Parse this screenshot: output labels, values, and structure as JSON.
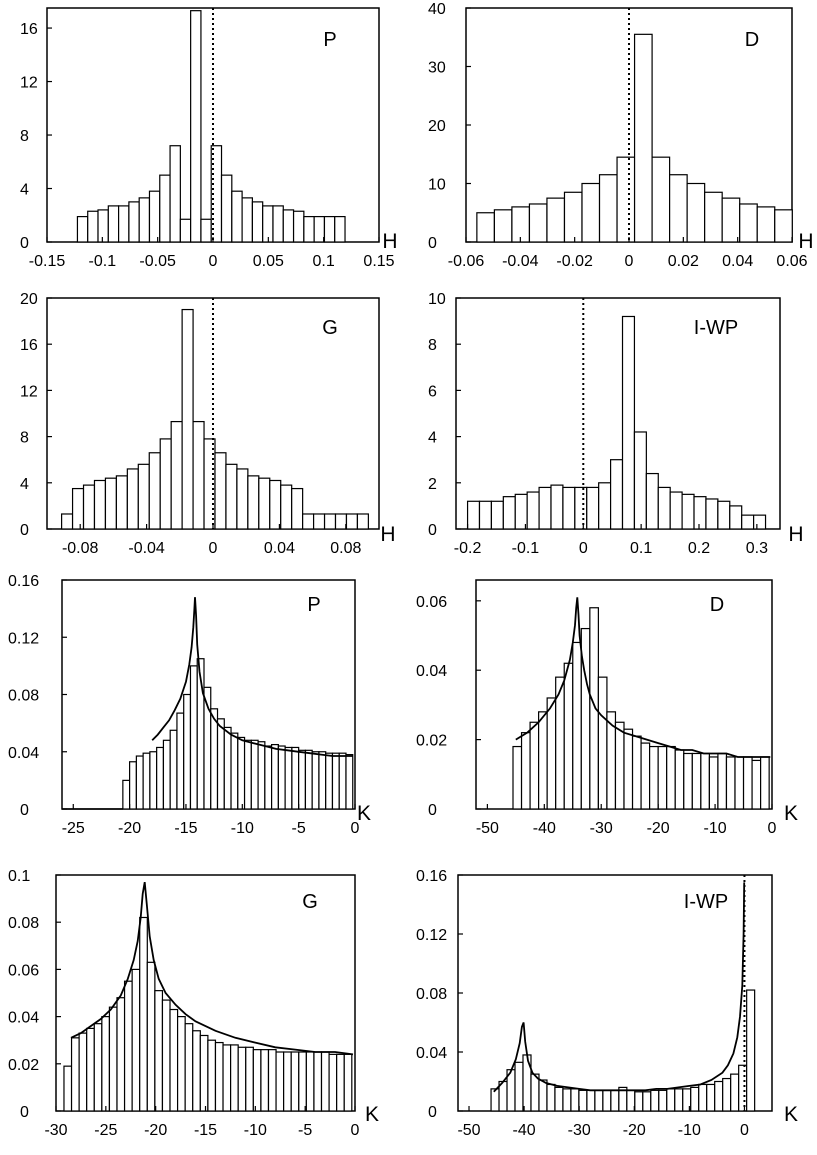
{
  "chart_data": [
    {
      "type": "bar",
      "panel_label": "P",
      "xlabel": "H",
      "xlim": [
        -0.15,
        0.15
      ],
      "ylim": [
        0,
        17.5
      ],
      "xticks": [
        -0.15,
        -0.1,
        -0.05,
        0,
        0.05,
        0.1,
        0.15
      ],
      "xtick_labels": [
        "-0.15",
        "-0.1",
        "-0.05",
        "0",
        "0.05",
        "0.1",
        "0.15"
      ],
      "yticks": [
        0,
        4,
        8,
        12,
        16
      ],
      "ytick_labels": [
        "0",
        "4",
        "8",
        "12",
        "16"
      ],
      "vline_x": 0,
      "bin_start": -0.1225,
      "bin_width": 0.0093,
      "values": [
        1.9,
        2.3,
        2.4,
        2.7,
        2.7,
        3.0,
        3.3,
        3.8,
        5.0,
        7.2,
        1.7,
        17.3,
        1.7,
        7.2,
        5.0,
        3.8,
        3.3,
        3.0,
        2.7,
        2.7,
        2.4,
        2.3,
        1.9,
        1.9,
        1.9,
        1.9
      ]
    },
    {
      "type": "bar",
      "panel_label": "D",
      "xlabel": "H",
      "xlim": [
        -0.06,
        0.06
      ],
      "ylim": [
        0,
        40
      ],
      "xticks": [
        -0.06,
        -0.04,
        -0.02,
        0,
        0.02,
        0.04,
        0.06
      ],
      "xtick_labels": [
        "-0.06",
        "-0.04",
        "-0.02",
        "0",
        "0.02",
        "0.04",
        "0.06"
      ],
      "yticks": [
        0,
        10,
        20,
        30,
        40
      ],
      "ytick_labels": [
        "0",
        "10",
        "20",
        "30",
        "40"
      ],
      "vline_x": 0,
      "bin_start": -0.056,
      "bin_width": 0.00645,
      "values": [
        5.0,
        5.5,
        6.0,
        6.5,
        7.5,
        8.5,
        10.0,
        11.5,
        14.5,
        35.5,
        14.5,
        11.5,
        10.0,
        8.5,
        7.5,
        6.5,
        6.0,
        5.5,
        5.0
      ]
    },
    {
      "type": "bar",
      "panel_label": "G",
      "xlabel": "H",
      "xlim": [
        -0.1,
        0.1
      ],
      "ylim": [
        0,
        20
      ],
      "xticks": [
        -0.08,
        -0.04,
        0,
        0.04,
        0.08
      ],
      "xtick_labels": [
        "-0.08",
        "-0.04",
        "0",
        "0.04",
        "0.08"
      ],
      "yticks": [
        0,
        4,
        8,
        12,
        16,
        20
      ],
      "ytick_labels": [
        "0",
        "4",
        "8",
        "12",
        "16",
        "20"
      ],
      "vline_x": 0,
      "bin_start": -0.0912,
      "bin_width": 0.0066,
      "values": [
        1.3,
        3.5,
        3.8,
        4.2,
        4.4,
        4.6,
        5.2,
        5.6,
        6.6,
        7.8,
        9.3,
        19.0,
        9.3,
        7.8,
        6.6,
        5.6,
        5.2,
        4.6,
        4.4,
        4.2,
        3.8,
        3.5,
        1.3,
        1.3,
        1.3,
        1.3,
        1.3,
        1.3
      ]
    },
    {
      "type": "bar",
      "panel_label": "I-WP",
      "xlabel": "H",
      "xlim": [
        -0.22,
        0.34
      ],
      "ylim": [
        0,
        10
      ],
      "xticks": [
        -0.2,
        -0.1,
        0,
        0.1,
        0.2,
        0.3
      ],
      "xtick_labels": [
        "-0.2",
        "-0.1",
        "0",
        "0.1",
        "0.2",
        "0.3"
      ],
      "yticks": [
        0,
        2,
        4,
        6,
        8,
        10
      ],
      "ytick_labels": [
        "0",
        "2",
        "4",
        "6",
        "8",
        "10"
      ],
      "vline_x": 0,
      "bin_start": -0.2,
      "bin_width": 0.0206,
      "values": [
        1.2,
        1.2,
        1.2,
        1.4,
        1.5,
        1.6,
        1.8,
        1.9,
        1.8,
        1.8,
        1.8,
        2.0,
        3.0,
        9.2,
        4.2,
        2.4,
        1.8,
        1.6,
        1.5,
        1.4,
        1.3,
        1.2,
        1.0,
        0.6,
        0.6
      ]
    },
    {
      "type": "bar",
      "panel_label": "P",
      "xlabel": "K",
      "xlim": [
        -26,
        0
      ],
      "ylim": [
        0,
        0.16
      ],
      "xticks": [
        -25,
        -20,
        -15,
        -10,
        -5,
        0
      ],
      "xtick_labels": [
        "-25",
        "-20",
        "-15",
        "-10",
        "-5",
        "0"
      ],
      "yticks": [
        0,
        0.04,
        0.08,
        0.12,
        0.16
      ],
      "ytick_labels": [
        "0",
        "0.04",
        "0.08",
        "0.12",
        "0.16"
      ],
      "bin_start": -20.6,
      "bin_width": 0.6,
      "values": [
        0.02,
        0.033,
        0.037,
        0.039,
        0.04,
        0.043,
        0.048,
        0.055,
        0.067,
        0.08,
        0.1,
        0.105,
        0.085,
        0.07,
        0.063,
        0.057,
        0.053,
        0.05,
        0.048,
        0.048,
        0.047,
        0.044,
        0.045,
        0.044,
        0.043,
        0.043,
        0.041,
        0.041,
        0.04,
        0.04,
        0.039,
        0.039,
        0.039,
        0.038,
        0.037
      ],
      "fit_curve": {
        "x": [
          -18,
          -17.5,
          -17,
          -16.5,
          -16,
          -15.5,
          -15,
          -14.7,
          -14.5,
          -14.35,
          -14.25,
          -14.2,
          -14.1,
          -14,
          -13.8,
          -13.5,
          -13,
          -12.5,
          -12,
          -11,
          -10,
          -9,
          -8,
          -7,
          -6,
          -5,
          -4,
          -3,
          -2,
          -1,
          -0.2
        ],
        "y": [
          0.048,
          0.052,
          0.057,
          0.062,
          0.069,
          0.077,
          0.089,
          0.101,
          0.113,
          0.127,
          0.14,
          0.148,
          0.135,
          0.115,
          0.096,
          0.081,
          0.07,
          0.063,
          0.058,
          0.052,
          0.048,
          0.046,
          0.044,
          0.042,
          0.041,
          0.04,
          0.039,
          0.038,
          0.037,
          0.037,
          0.037
        ]
      },
      "baseline_segment": [
        -26,
        -20.6
      ]
    },
    {
      "type": "bar",
      "panel_label": "D",
      "xlabel": "K",
      "xlim": [
        -52,
        0
      ],
      "ylim": [
        0,
        0.066
      ],
      "xticks": [
        -50,
        -40,
        -30,
        -20,
        -10,
        0
      ],
      "xtick_labels": [
        "-50",
        "-40",
        "-30",
        "-20",
        "-10",
        "0"
      ],
      "yticks": [
        0,
        0.02,
        0.04,
        0.06
      ],
      "ytick_labels": [
        "0",
        "0.02",
        "0.04",
        "0.06"
      ],
      "bin_start": -45.5,
      "bin_width": 1.5,
      "values": [
        0.018,
        0.022,
        0.025,
        0.028,
        0.032,
        0.038,
        0.042,
        0.048,
        0.052,
        0.058,
        0.038,
        0.028,
        0.025,
        0.023,
        0.021,
        0.019,
        0.018,
        0.018,
        0.018,
        0.017,
        0.016,
        0.016,
        0.016,
        0.015,
        0.016,
        0.015,
        0.015,
        0.015,
        0.014,
        0.015,
        0.015
      ],
      "fit_curve": {
        "x": [
          -45,
          -43,
          -41,
          -39,
          -37.5,
          -36.5,
          -35.5,
          -35,
          -34.6,
          -34.4,
          -34.2,
          -34,
          -33.8,
          -33.4,
          -33,
          -32.5,
          -32,
          -31,
          -30,
          -28,
          -26,
          -24,
          -22,
          -20,
          -18,
          -16,
          -14,
          -12,
          -10,
          -8,
          -6,
          -4,
          -2,
          -0.3
        ],
        "y": [
          0.02,
          0.022,
          0.025,
          0.029,
          0.033,
          0.037,
          0.043,
          0.048,
          0.053,
          0.058,
          0.061,
          0.056,
          0.05,
          0.044,
          0.04,
          0.036,
          0.033,
          0.029,
          0.027,
          0.024,
          0.022,
          0.021,
          0.02,
          0.019,
          0.018,
          0.017,
          0.017,
          0.016,
          0.016,
          0.016,
          0.015,
          0.015,
          0.015,
          0.015
        ]
      }
    },
    {
      "type": "bar",
      "panel_label": "G",
      "xlabel": "K",
      "xlim": [
        -30,
        0
      ],
      "ylim": [
        0,
        0.1
      ],
      "xticks": [
        -30,
        -25,
        -20,
        -15,
        -10,
        -5,
        0
      ],
      "xtick_labels": [
        "-30",
        "-25",
        "-20",
        "-15",
        "-10",
        "-5",
        "0"
      ],
      "yticks": [
        0,
        0.02,
        0.04,
        0.06,
        0.08,
        0.1
      ],
      "ytick_labels": [
        "0",
        "0.02",
        "0.04",
        "0.06",
        "0.08",
        "0.1"
      ],
      "bin_start": -29.2,
      "bin_width": 0.76,
      "values": [
        0.019,
        0.031,
        0.033,
        0.035,
        0.037,
        0.04,
        0.044,
        0.048,
        0.055,
        0.06,
        0.082,
        0.063,
        0.051,
        0.047,
        0.043,
        0.04,
        0.037,
        0.034,
        0.032,
        0.03,
        0.029,
        0.028,
        0.028,
        0.027,
        0.027,
        0.026,
        0.026,
        0.026,
        0.025,
        0.025,
        0.025,
        0.025,
        0.025,
        0.025,
        0.025,
        0.024,
        0.024,
        0.024
      ],
      "fit_curve": {
        "x": [
          -28.5,
          -27.5,
          -26.5,
          -25.5,
          -24.5,
          -23.5,
          -22.8,
          -22.2,
          -21.8,
          -21.5,
          -21.3,
          -21.1,
          -20.9,
          -20.6,
          -20.2,
          -19.7,
          -19,
          -18,
          -17,
          -16,
          -14,
          -12,
          -10,
          -8,
          -6,
          -4,
          -2,
          -0.2
        ],
        "y": [
          0.031,
          0.033,
          0.036,
          0.039,
          0.043,
          0.049,
          0.056,
          0.064,
          0.072,
          0.082,
          0.092,
          0.097,
          0.088,
          0.074,
          0.064,
          0.056,
          0.05,
          0.045,
          0.041,
          0.038,
          0.034,
          0.031,
          0.029,
          0.027,
          0.026,
          0.025,
          0.025,
          0.024
        ]
      }
    },
    {
      "type": "bar",
      "panel_label": "I-WP",
      "xlabel": "K",
      "xlim": [
        -52,
        5
      ],
      "ylim": [
        0,
        0.16
      ],
      "xticks": [
        -50,
        -40,
        -30,
        -20,
        -10,
        0
      ],
      "xtick_labels": [
        "-50",
        "-40",
        "-30",
        "-20",
        "-10",
        "0"
      ],
      "yticks": [
        0,
        0.04,
        0.08,
        0.12,
        0.16
      ],
      "ytick_labels": [
        "0",
        "0.04",
        "0.08",
        "0.12",
        "0.16"
      ],
      "vline_x": 0,
      "bin_start": -46,
      "bin_width": 1.45,
      "values": [
        0.015,
        0.02,
        0.028,
        0.033,
        0.038,
        0.025,
        0.021,
        0.018,
        0.016,
        0.015,
        0.015,
        0.014,
        0.014,
        0.014,
        0.014,
        0.014,
        0.016,
        0.014,
        0.013,
        0.013,
        0.014,
        0.014,
        0.015,
        0.015,
        0.015,
        0.016,
        0.018,
        0.018,
        0.02,
        0.022,
        0.025,
        0.031,
        0.082
      ],
      "fit_curve": {
        "x": [
          -45.5,
          -44,
          -42.5,
          -41.5,
          -40.8,
          -40.4,
          -40.1,
          -39.8,
          -39.3,
          -38.5,
          -37.5,
          -36,
          -34,
          -32,
          -30,
          -28,
          -26,
          -24,
          -22,
          -20,
          -18,
          -16,
          -14,
          -12,
          -10,
          -8,
          -6,
          -4,
          -3,
          -2,
          -1.3,
          -0.8,
          -0.4,
          -0.15,
          -0.05
        ],
        "y": [
          0.013,
          0.019,
          0.026,
          0.035,
          0.046,
          0.057,
          0.06,
          0.047,
          0.034,
          0.026,
          0.022,
          0.019,
          0.017,
          0.016,
          0.015,
          0.014,
          0.014,
          0.014,
          0.014,
          0.014,
          0.014,
          0.015,
          0.015,
          0.016,
          0.017,
          0.018,
          0.021,
          0.026,
          0.031,
          0.039,
          0.05,
          0.064,
          0.085,
          0.12,
          0.155
        ]
      }
    }
  ]
}
